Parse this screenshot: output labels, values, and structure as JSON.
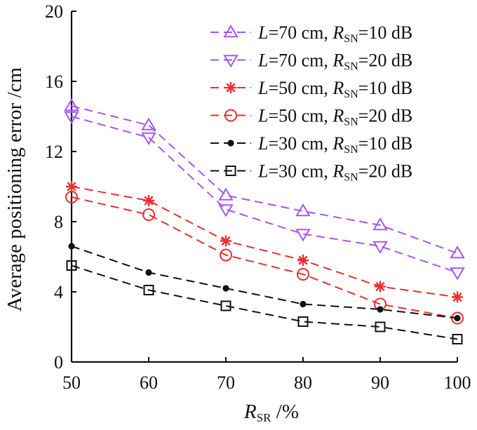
{
  "chart_data": {
    "type": "line",
    "x": [
      50,
      60,
      70,
      80,
      90,
      100
    ],
    "xlim": [
      50,
      100
    ],
    "ylim": [
      0,
      20
    ],
    "xticks": [
      "50",
      "60",
      "70",
      "80",
      "90",
      "100"
    ],
    "yticks": [
      "0",
      "4",
      "8",
      "12",
      "16",
      "20"
    ],
    "ylabel": "Average positioning error /cm",
    "xlabel": {
      "main": "R",
      "sub": "SR",
      "suffix": " /%"
    },
    "legend_position": "top-right",
    "series": [
      {
        "name": "L=70 cm, R_SN=10 dB",
        "label": {
          "var": "L",
          "length": "=70 cm, ",
          "r": "R",
          "sub": "SN",
          "value": "=10 dB"
        },
        "marker": "triangle-up",
        "color": "#a855f7",
        "values": [
          14.6,
          13.5,
          9.5,
          8.6,
          7.8,
          6.2
        ]
      },
      {
        "name": "L=70 cm, R_SN=20 dB",
        "label": {
          "var": "L",
          "length": "=70 cm, ",
          "r": "R",
          "sub": "SN",
          "value": "=20 dB"
        },
        "marker": "triangle-down",
        "color": "#a855f7",
        "values": [
          14.0,
          12.8,
          8.7,
          7.3,
          6.6,
          5.1
        ]
      },
      {
        "name": "L=50 cm, R_SN=10 dB",
        "label": {
          "var": "L",
          "length": "=50 cm, ",
          "r": "R",
          "sub": "SN",
          "value": "=10 dB"
        },
        "marker": "star",
        "color": "#ef2d2d",
        "values": [
          10.0,
          9.2,
          6.9,
          5.8,
          4.3,
          3.7
        ]
      },
      {
        "name": "L=50 cm, R_SN=20 dB",
        "label": {
          "var": "L",
          "length": "=50 cm, ",
          "r": "R",
          "sub": "SN",
          "value": "=20 dB"
        },
        "marker": "circle",
        "color": "#ef2d2d",
        "values": [
          9.4,
          8.4,
          6.1,
          5.0,
          3.3,
          2.5
        ]
      },
      {
        "name": "L=30 cm, R_SN=10 dB",
        "label": {
          "var": "L",
          "length": "=30 cm, ",
          "r": "R",
          "sub": "SN",
          "value": "=10 dB"
        },
        "marker": "dot",
        "color": "#111111",
        "values": [
          6.6,
          5.1,
          4.2,
          3.3,
          3.0,
          2.5
        ]
      },
      {
        "name": "L=30 cm, R_SN=20 dB",
        "label": {
          "var": "L",
          "length": "=30 cm, ",
          "r": "R",
          "sub": "SN",
          "value": "=20 dB"
        },
        "marker": "square",
        "color": "#111111",
        "values": [
          5.5,
          4.1,
          3.2,
          2.3,
          2.0,
          1.3
        ]
      }
    ]
  }
}
